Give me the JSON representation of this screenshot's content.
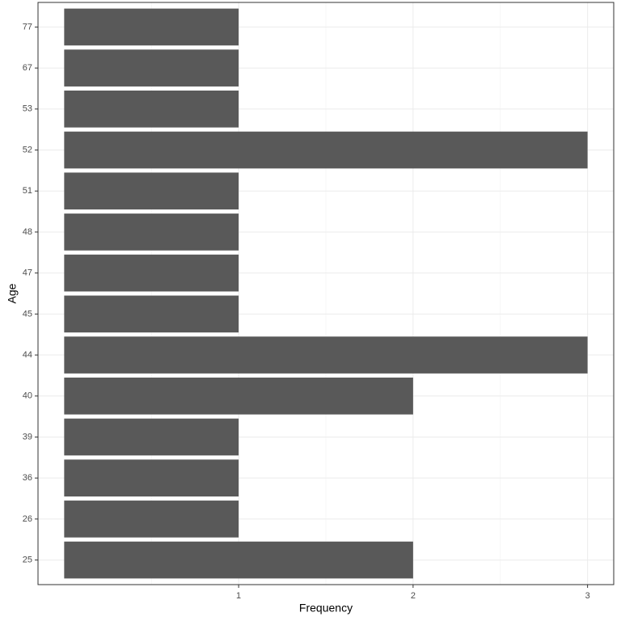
{
  "chart_data": {
    "type": "bar",
    "orientation": "horizontal",
    "x_label": "Frequency",
    "y_label": "Age",
    "categories": [
      "25",
      "26",
      "36",
      "39",
      "40",
      "44",
      "45",
      "47",
      "48",
      "51",
      "52",
      "53",
      "67",
      "77"
    ],
    "values": [
      2,
      1,
      1,
      1,
      2,
      3,
      1,
      1,
      1,
      1,
      3,
      1,
      1,
      1
    ],
    "color": "#595959",
    "xlim": [
      -0.15,
      3.15
    ],
    "xticks": [
      1,
      2,
      3
    ],
    "x_minor_ticks": [
      0.5,
      1.5,
      2.5
    ],
    "grid": true
  }
}
